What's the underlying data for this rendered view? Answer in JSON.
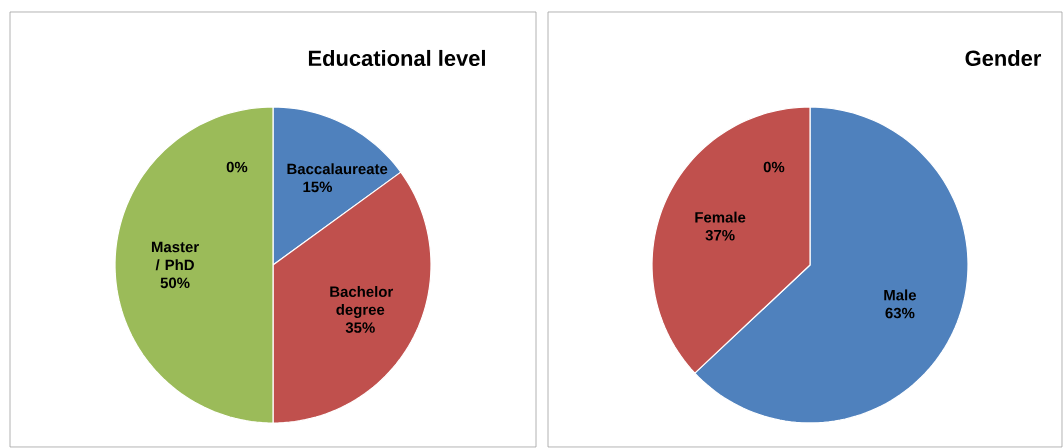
{
  "chart_data": [
    {
      "type": "pie",
      "title": "Educational level",
      "categories": [
        "Baccalaureate",
        "Bachelor degree",
        "Master / PhD",
        null
      ],
      "values": [
        15,
        35,
        50,
        0
      ],
      "value_labels": [
        "15%",
        "35%",
        "50%",
        "0%"
      ],
      "colors": [
        "#4f81bd",
        "#c0504d",
        "#9bbb59",
        "#8064a2"
      ]
    },
    {
      "type": "pie",
      "title": "Gender",
      "categories": [
        "Male",
        "Female",
        null
      ],
      "values": [
        63,
        37,
        0
      ],
      "value_labels": [
        "63%",
        "37%",
        "0%"
      ],
      "colors": [
        "#4f81bd",
        "#c0504d",
        "#9bbb59"
      ]
    }
  ]
}
